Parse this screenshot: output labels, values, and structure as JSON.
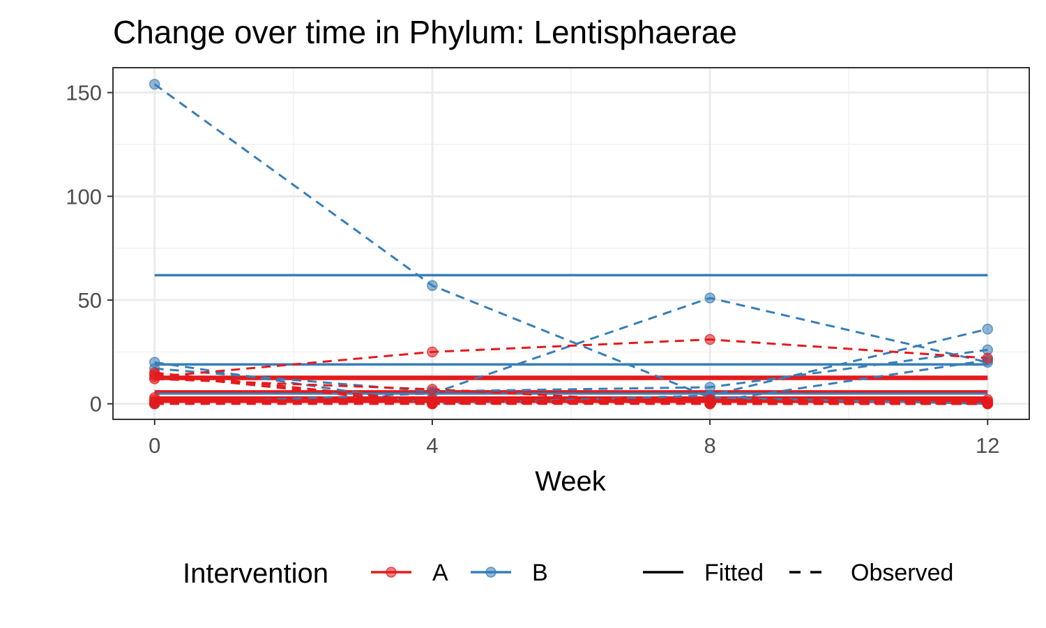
{
  "chart_data": {
    "type": "line",
    "title": "Change over time in Phylum: Lentisphaerae",
    "xlabel": "Week",
    "ylabel": "",
    "x_ticks": [
      0,
      4,
      8,
      12
    ],
    "y_ticks": [
      0,
      50,
      100,
      150
    ],
    "xlim": [
      -0.6,
      12.6
    ],
    "ylim": [
      -7.5,
      162
    ],
    "grid": true,
    "legend_position": "bottom",
    "colors": {
      "A": "#e41a1c",
      "B": "#377eb8"
    },
    "legend": {
      "color_title": "Intervention",
      "color_entries": [
        "A",
        "B"
      ],
      "linetype_entries": [
        "Fitted",
        "Observed"
      ]
    },
    "observed": [
      {
        "group": "B",
        "x": [
          0,
          4,
          8,
          12
        ],
        "y": [
          154,
          57,
          3,
          0
        ]
      },
      {
        "group": "B",
        "x": [
          0,
          4,
          8,
          12
        ],
        "y": [
          0,
          5,
          51,
          20
        ]
      },
      {
        "group": "B",
        "x": [
          0,
          4,
          8,
          12
        ],
        "y": [
          20,
          0,
          4,
          36
        ]
      },
      {
        "group": "B",
        "x": [
          0,
          4,
          8,
          12
        ],
        "y": [
          17,
          6,
          8,
          26
        ]
      },
      {
        "group": "B",
        "x": [
          0,
          4,
          8,
          12
        ],
        "y": [
          0,
          1,
          1,
          21
        ]
      },
      {
        "group": "A",
        "x": [
          0,
          4,
          8,
          12
        ],
        "y": [
          13,
          25,
          31,
          22
        ]
      },
      {
        "group": "A",
        "x": [
          0,
          4,
          8,
          12
        ],
        "y": [
          15,
          1,
          2,
          1
        ]
      },
      {
        "group": "A",
        "x": [
          0,
          4,
          8,
          12
        ],
        "y": [
          12,
          7,
          0,
          0
        ]
      },
      {
        "group": "A",
        "x": [
          0,
          4,
          8,
          12
        ],
        "y": [
          14,
          0,
          1,
          0
        ]
      },
      {
        "group": "A",
        "x": [
          0,
          4,
          8,
          12
        ],
        "y": [
          0,
          2,
          0,
          0
        ]
      },
      {
        "group": "A",
        "x": [
          0,
          4,
          8,
          12
        ],
        "y": [
          1,
          0,
          2,
          1
        ]
      },
      {
        "group": "A",
        "x": [
          0,
          4,
          8,
          12
        ],
        "y": [
          2,
          1,
          1,
          2
        ]
      },
      {
        "group": "A",
        "x": [
          0,
          4,
          8,
          12
        ],
        "y": [
          0,
          0,
          0,
          0
        ]
      },
      {
        "group": "A",
        "x": [
          0,
          4,
          8,
          12
        ],
        "y": [
          1,
          1,
          0,
          0
        ]
      },
      {
        "group": "A",
        "x": [
          0,
          4,
          8,
          12
        ],
        "y": [
          3,
          0,
          1,
          0
        ]
      }
    ],
    "fitted": [
      {
        "group": "B",
        "x": [
          0,
          12
        ],
        "y": [
          62,
          62
        ]
      },
      {
        "group": "B",
        "x": [
          0,
          12
        ],
        "y": [
          19,
          19
        ]
      },
      {
        "group": "B",
        "x": [
          0,
          12
        ],
        "y": [
          5,
          5
        ]
      },
      {
        "group": "A",
        "x": [
          0,
          12
        ],
        "y": [
          13,
          13
        ]
      },
      {
        "group": "A",
        "x": [
          0,
          12
        ],
        "y": [
          12,
          12
        ]
      },
      {
        "group": "A",
        "x": [
          0,
          12
        ],
        "y": [
          6,
          6
        ]
      },
      {
        "group": "A",
        "x": [
          0,
          12
        ],
        "y": [
          3,
          3
        ]
      },
      {
        "group": "A",
        "x": [
          0,
          12
        ],
        "y": [
          2,
          2
        ]
      },
      {
        "group": "A",
        "x": [
          0,
          12
        ],
        "y": [
          1,
          1
        ]
      }
    ]
  }
}
